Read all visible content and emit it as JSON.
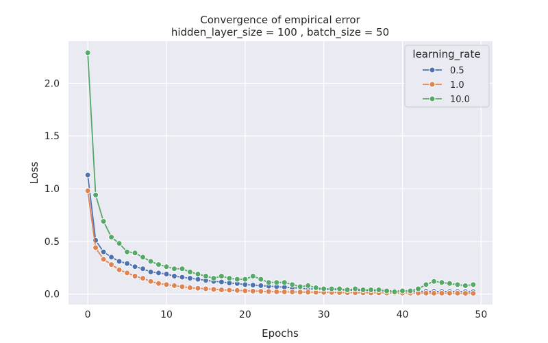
{
  "chart_data": {
    "type": "line",
    "title": "Convergence of empirical error",
    "subtitle": "hidden_layer_size = 100 , batch_size = 50",
    "xlabel": "Epochs",
    "ylabel": "Loss",
    "xlim": [
      -2.45,
      51.45
    ],
    "ylim": [
      -0.1,
      2.4
    ],
    "xticks": [
      0,
      10,
      20,
      30,
      40,
      50
    ],
    "xtick_labels": [
      "0",
      "10",
      "20",
      "30",
      "40",
      "50"
    ],
    "yticks": [
      0.0,
      0.5,
      1.0,
      1.5,
      2.0
    ],
    "ytick_labels": [
      "0.0",
      "0.5",
      "1.0",
      "1.5",
      "2.0"
    ],
    "grid": true,
    "legend": {
      "title": "learning_rate",
      "placement": "top-right"
    },
    "x": [
      0,
      1,
      2,
      3,
      4,
      5,
      6,
      7,
      8,
      9,
      10,
      11,
      12,
      13,
      14,
      15,
      16,
      17,
      18,
      19,
      20,
      21,
      22,
      23,
      24,
      25,
      26,
      27,
      28,
      29,
      30,
      31,
      32,
      33,
      34,
      35,
      36,
      37,
      38,
      39,
      40,
      41,
      42,
      43,
      44,
      45,
      46,
      47,
      48,
      49
    ],
    "series": [
      {
        "name": "0.5",
        "color": "#4c72b0",
        "values": [
          1.13,
          0.51,
          0.4,
          0.35,
          0.31,
          0.29,
          0.26,
          0.24,
          0.21,
          0.2,
          0.19,
          0.17,
          0.16,
          0.15,
          0.14,
          0.13,
          0.12,
          0.115,
          0.105,
          0.1,
          0.09,
          0.085,
          0.08,
          0.075,
          0.07,
          0.065,
          0.06,
          0.055,
          0.05,
          0.048,
          0.045,
          0.043,
          0.04,
          0.038,
          0.036,
          0.034,
          0.032,
          0.031,
          0.03,
          0.029,
          0.028,
          0.027,
          0.026,
          0.025,
          0.025,
          0.024,
          0.023,
          0.023,
          0.022,
          0.022
        ]
      },
      {
        "name": "1.0",
        "color": "#dd8452",
        "values": [
          0.98,
          0.44,
          0.33,
          0.28,
          0.23,
          0.2,
          0.17,
          0.15,
          0.12,
          0.1,
          0.09,
          0.08,
          0.07,
          0.06,
          0.055,
          0.05,
          0.045,
          0.04,
          0.037,
          0.034,
          0.031,
          0.028,
          0.026,
          0.024,
          0.022,
          0.021,
          0.02,
          0.019,
          0.018,
          0.017,
          0.016,
          0.015,
          0.014,
          0.013,
          0.012,
          0.012,
          0.011,
          0.011,
          0.01,
          0.01,
          0.01,
          0.009,
          0.009,
          0.009,
          0.008,
          0.008,
          0.008,
          0.008,
          0.007,
          0.007
        ]
      },
      {
        "name": "10.0",
        "color": "#55a868",
        "values": [
          2.29,
          0.94,
          0.69,
          0.54,
          0.48,
          0.4,
          0.39,
          0.35,
          0.31,
          0.28,
          0.26,
          0.24,
          0.24,
          0.21,
          0.19,
          0.17,
          0.15,
          0.17,
          0.15,
          0.14,
          0.14,
          0.17,
          0.14,
          0.11,
          0.11,
          0.11,
          0.09,
          0.07,
          0.08,
          0.06,
          0.05,
          0.05,
          0.05,
          0.04,
          0.05,
          0.04,
          0.04,
          0.04,
          0.03,
          0.02,
          0.03,
          0.03,
          0.05,
          0.09,
          0.12,
          0.11,
          0.1,
          0.09,
          0.08,
          0.09
        ]
      }
    ]
  }
}
